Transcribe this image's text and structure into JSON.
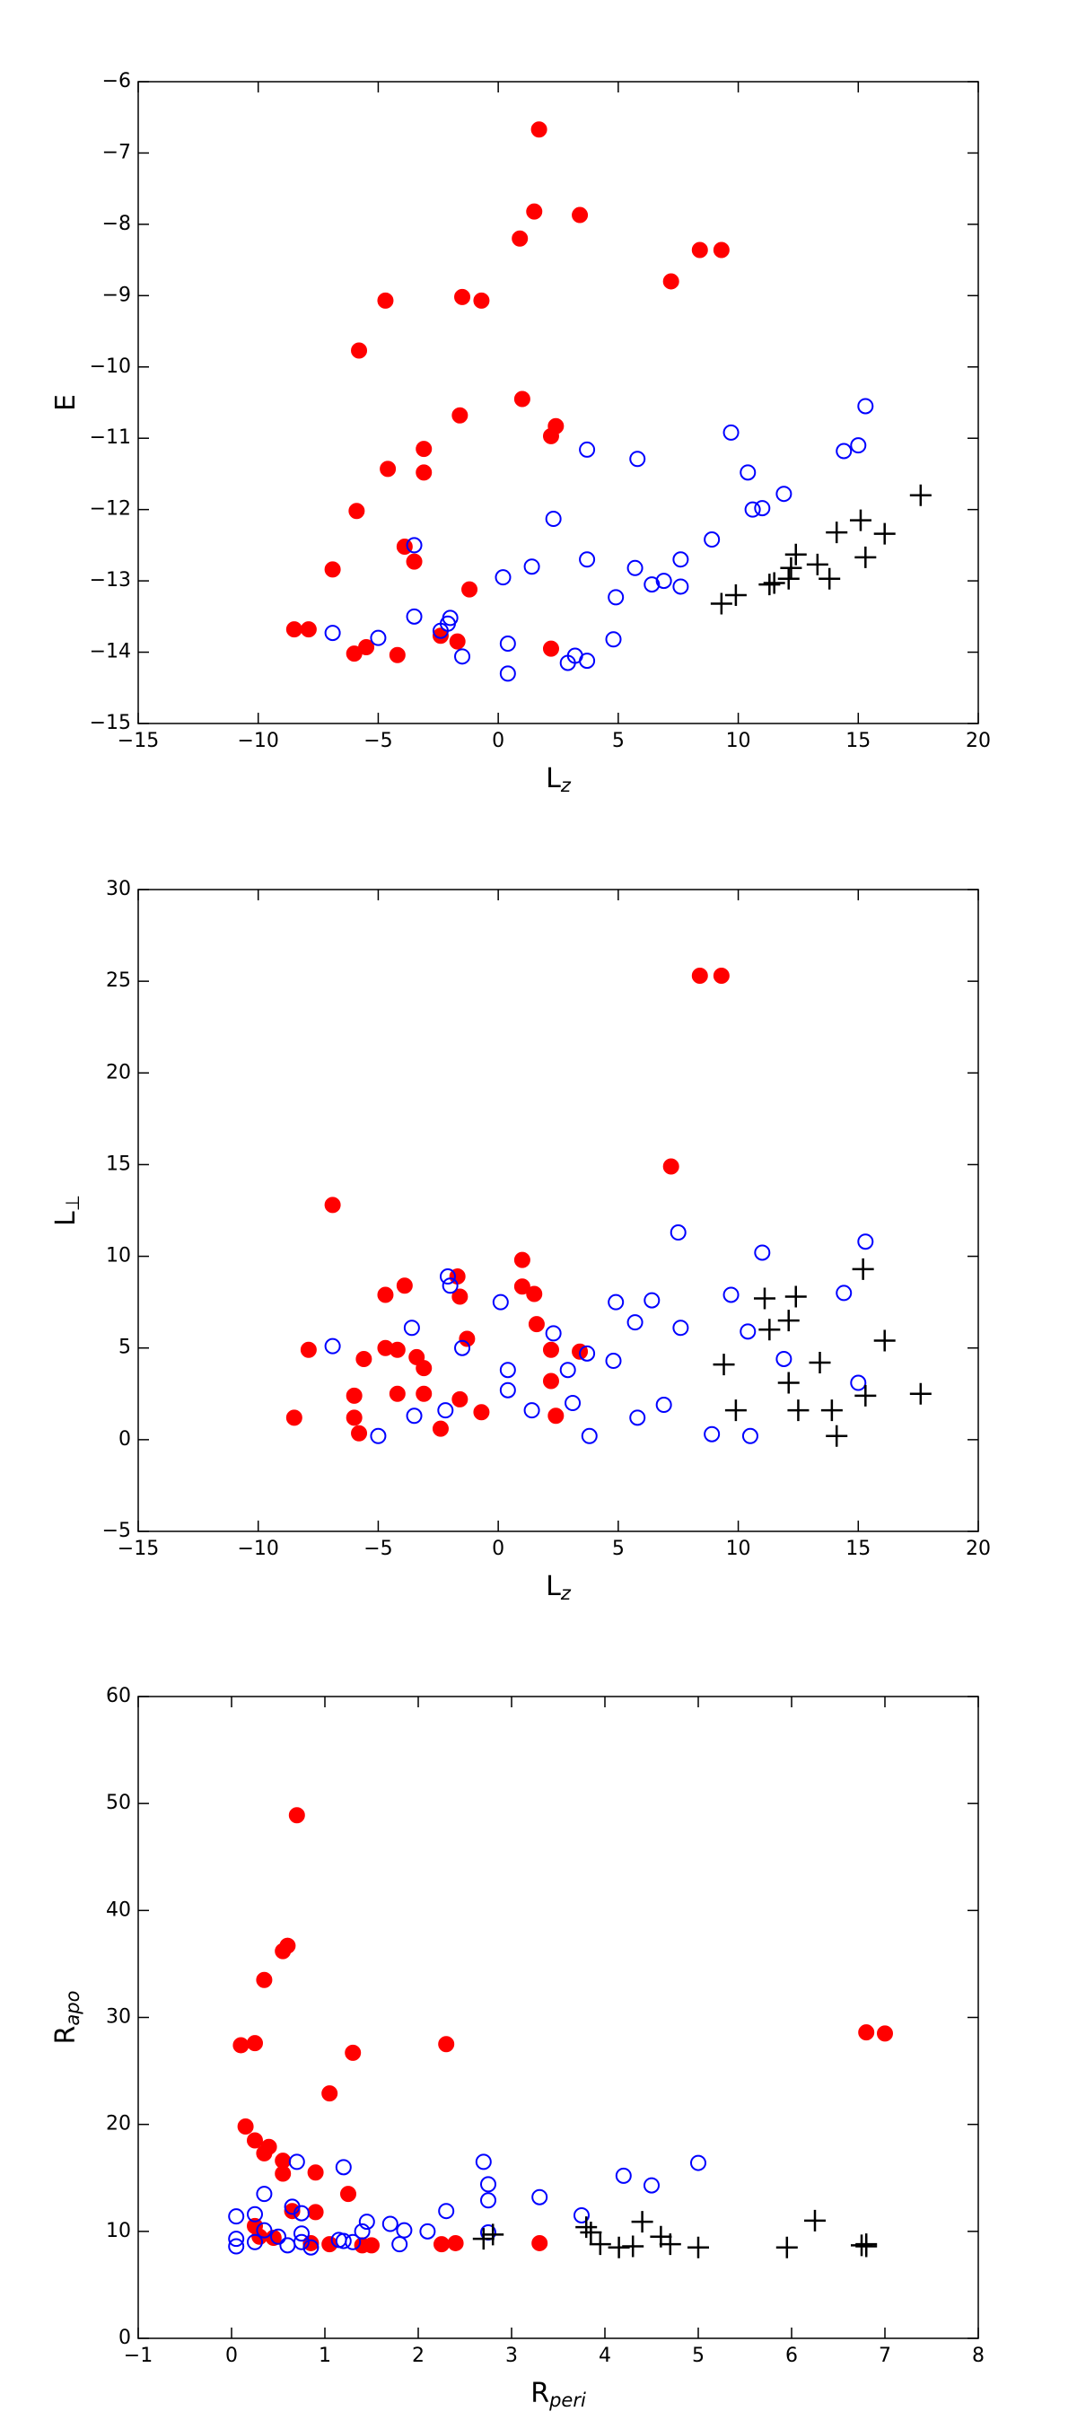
{
  "chart_data": [
    {
      "type": "scatter",
      "xlabel": {
        "text": "L",
        "subscript": "z"
      },
      "ylabel": {
        "text": "E"
      },
      "xlim": [
        -15,
        20
      ],
      "ylim": [
        -15,
        -6
      ],
      "xticks": [
        {
          "value": -15,
          "label": "−15"
        },
        {
          "value": -10,
          "label": "−10"
        },
        {
          "value": -5,
          "label": "−5"
        },
        0,
        5,
        10,
        15,
        20
      ],
      "yticks": [
        {
          "value": -15,
          "label": "−15"
        },
        {
          "value": -14,
          "label": "−14"
        },
        {
          "value": -13,
          "label": "−13"
        },
        {
          "value": -12,
          "label": "−12"
        },
        {
          "value": -11,
          "label": "−11"
        },
        {
          "value": -10,
          "label": "−10"
        },
        {
          "value": -9,
          "label": "−9"
        },
        {
          "value": -8,
          "label": "−8"
        },
        {
          "value": -7,
          "label": "−7"
        },
        {
          "value": -6,
          "label": "−6"
        }
      ],
      "series": [
        {
          "color": "#ff0000",
          "marker": "filled-circle",
          "x": [
            1.7,
            1.5,
            3.4,
            0.9,
            8.4,
            9.3,
            7.2,
            -4.7,
            -1.5,
            -0.7,
            -5.8,
            1.0,
            -1.6,
            2.4,
            2.2,
            -3.1,
            -4.6,
            -3.1,
            -5.9,
            -3.9,
            -3.5,
            -6.9,
            -1.2,
            -8.5,
            -7.9,
            -2.4,
            -1.7,
            -5.5,
            -6.0,
            -4.2,
            2.2
          ],
          "y": [
            -6.67,
            -7.82,
            -7.87,
            -8.2,
            -8.36,
            -8.36,
            -8.8,
            -9.07,
            -9.02,
            -9.07,
            -9.77,
            -10.45,
            -10.68,
            -10.83,
            -10.97,
            -11.15,
            -11.43,
            -11.48,
            -12.02,
            -12.52,
            -12.73,
            -12.84,
            -13.12,
            -13.68,
            -13.68,
            -13.77,
            -13.85,
            -13.93,
            -14.02,
            -14.04,
            -13.95
          ]
        },
        {
          "color": "#0000ff",
          "marker": "open-circle",
          "x": [
            9.7,
            15.3,
            15.0,
            14.4,
            3.7,
            5.8,
            10.4,
            11.9,
            10.6,
            11.0,
            2.3,
            -3.5,
            8.9,
            3.7,
            1.4,
            5.7,
            7.6,
            0.2,
            6.4,
            6.9,
            7.6,
            4.9,
            -3.5,
            -2.0,
            -2.1,
            -2.4,
            -5.0,
            -6.9,
            4.8,
            0.4,
            -1.5,
            3.2,
            3.7,
            2.9,
            0.4
          ],
          "y": [
            -10.92,
            -10.55,
            -11.1,
            -11.18,
            -11.16,
            -11.29,
            -11.48,
            -11.78,
            -12.0,
            -11.98,
            -12.13,
            -12.5,
            -12.42,
            -12.7,
            -12.8,
            -12.82,
            -12.7,
            -12.95,
            -13.05,
            -13.0,
            -13.08,
            -13.23,
            -13.5,
            -13.52,
            -13.6,
            -13.7,
            -13.8,
            -13.73,
            -13.82,
            -13.88,
            -14.06,
            -14.05,
            -14.12,
            -14.15,
            -14.3
          ]
        },
        {
          "color": "#000000",
          "marker": "plus",
          "x": [
            17.6,
            15.1,
            16.1,
            14.1,
            12.4,
            12.2,
            13.3,
            15.3,
            12.1,
            13.8,
            11.3,
            11.5,
            9.9,
            9.3
          ],
          "y": [
            -11.8,
            -12.15,
            -12.34,
            -12.32,
            -12.63,
            -12.82,
            -12.77,
            -12.67,
            -12.97,
            -12.97,
            -13.05,
            -13.03,
            -13.2,
            -13.32
          ]
        }
      ]
    },
    {
      "type": "scatter",
      "xlabel": {
        "text": "L",
        "subscript": "z"
      },
      "ylabel": {
        "text": "L",
        "subscript": "⊥"
      },
      "xlim": [
        -15,
        20
      ],
      "ylim": [
        -5,
        30
      ],
      "xticks": [
        {
          "value": -15,
          "label": "−15"
        },
        {
          "value": -10,
          "label": "−10"
        },
        {
          "value": -5,
          "label": "−5"
        },
        0,
        5,
        10,
        15,
        20
      ],
      "yticks": [
        {
          "value": -5,
          "label": "−5"
        },
        0,
        5,
        10,
        15,
        20,
        25,
        30
      ],
      "series": [
        {
          "color": "#ff0000",
          "marker": "filled-circle",
          "x": [
            8.4,
            9.3,
            7.2,
            -6.9,
            1.0,
            -1.7,
            1.0,
            -3.9,
            -4.7,
            1.5,
            -1.6,
            1.6,
            -1.3,
            -7.9,
            -4.7,
            -4.2,
            2.2,
            3.4,
            -5.6,
            -3.4,
            -3.1,
            2.2,
            -6.0,
            -4.2,
            -3.1,
            -1.6,
            -8.5,
            -6.0,
            -0.7,
            2.4,
            -2.4,
            -5.8
          ],
          "y": [
            25.3,
            25.3,
            14.9,
            12.8,
            9.8,
            8.9,
            8.35,
            8.4,
            7.9,
            7.95,
            7.8,
            6.3,
            5.5,
            4.9,
            5.0,
            4.9,
            4.9,
            4.8,
            4.4,
            4.5,
            3.9,
            3.2,
            2.4,
            2.5,
            2.5,
            2.2,
            1.2,
            1.2,
            1.5,
            1.3,
            0.6,
            0.35
          ]
        },
        {
          "color": "#0000ff",
          "marker": "open-circle",
          "x": [
            7.5,
            15.3,
            11.0,
            -2.1,
            -2.0,
            9.7,
            14.4,
            0.1,
            4.9,
            6.4,
            -3.6,
            5.7,
            7.6,
            10.4,
            2.3,
            -1.5,
            -6.9,
            3.7,
            11.9,
            4.8,
            0.4,
            2.9,
            15.0,
            0.4,
            3.1,
            6.9,
            -2.2,
            1.4,
            -3.5,
            5.8,
            8.9,
            10.5,
            3.8,
            -5.0
          ],
          "y": [
            11.3,
            10.8,
            10.2,
            8.9,
            8.4,
            7.9,
            8.0,
            7.5,
            7.5,
            7.6,
            6.1,
            6.4,
            6.1,
            5.9,
            5.8,
            5.0,
            5.1,
            4.7,
            4.4,
            4.3,
            3.8,
            3.8,
            3.1,
            2.7,
            2.0,
            1.9,
            1.6,
            1.6,
            1.3,
            1.2,
            0.3,
            0.2,
            0.2,
            0.2
          ]
        },
        {
          "color": "#000000",
          "marker": "plus",
          "x": [
            15.2,
            11.1,
            12.4,
            12.1,
            11.3,
            16.1,
            9.4,
            13.4,
            12.1,
            15.3,
            17.6,
            9.9,
            12.5,
            13.9,
            14.1
          ],
          "y": [
            9.3,
            7.7,
            7.8,
            6.5,
            6.0,
            5.4,
            4.1,
            4.2,
            3.1,
            2.4,
            2.5,
            1.6,
            1.6,
            1.6,
            0.2
          ]
        }
      ]
    },
    {
      "type": "scatter",
      "xlabel": {
        "text": "R",
        "subscript": "peri"
      },
      "ylabel": {
        "text": "R",
        "subscript": "apo"
      },
      "xlim": [
        -1,
        8
      ],
      "ylim": [
        0,
        60
      ],
      "xticks": [
        {
          "value": -1,
          "label": "−1"
        },
        0,
        1,
        2,
        3,
        4,
        5,
        6,
        7,
        8
      ],
      "yticks": [
        0,
        10,
        20,
        30,
        40,
        50,
        60
      ],
      "series": [
        {
          "color": "#ff0000",
          "marker": "filled-circle",
          "x": [
            0.7,
            0.6,
            0.55,
            0.35,
            0.1,
            0.25,
            1.3,
            2.3,
            6.8,
            7.0,
            1.05,
            0.15,
            0.25,
            0.4,
            0.35,
            0.55,
            0.9,
            0.55,
            1.25,
            0.65,
            0.9,
            0.25,
            0.3,
            0.45,
            1.05,
            1.4,
            1.5,
            2.25,
            2.4,
            3.3,
            0.85
          ],
          "y": [
            48.9,
            36.7,
            36.2,
            33.5,
            27.4,
            27.6,
            26.7,
            27.5,
            28.6,
            28.5,
            22.9,
            19.8,
            18.5,
            17.9,
            17.3,
            16.6,
            15.5,
            15.4,
            13.5,
            11.9,
            11.8,
            10.5,
            9.5,
            9.4,
            8.8,
            8.7,
            8.7,
            8.8,
            8.9,
            8.9,
            8.9
          ]
        },
        {
          "color": "#0000ff",
          "marker": "open-circle",
          "x": [
            0.7,
            1.2,
            2.7,
            5.0,
            4.2,
            4.5,
            2.75,
            0.35,
            3.3,
            2.75,
            0.65,
            0.05,
            0.25,
            0.75,
            2.3,
            3.75,
            1.45,
            1.7,
            1.85,
            2.1,
            0.05,
            0.35,
            0.5,
            0.75,
            1.15,
            1.3,
            1.4,
            2.75,
            0.05,
            0.25,
            0.6,
            0.75,
            1.2,
            1.8,
            0.85
          ],
          "y": [
            16.5,
            16.0,
            16.5,
            16.4,
            15.2,
            14.3,
            14.4,
            13.5,
            13.2,
            12.9,
            12.3,
            11.4,
            11.6,
            11.7,
            11.9,
            11.5,
            10.9,
            10.7,
            10.1,
            10.0,
            9.3,
            10.1,
            9.5,
            9.8,
            9.2,
            9.0,
            10.0,
            9.9,
            8.6,
            9.0,
            8.7,
            9.0,
            9.1,
            8.8,
            8.5
          ]
        },
        {
          "color": "#000000",
          "marker": "plus",
          "x": [
            6.25,
            4.4,
            3.8,
            3.85,
            2.8,
            2.7,
            4.6,
            3.95,
            4.3,
            4.7,
            4.15,
            5.0,
            5.95,
            6.8,
            6.8,
            6.75
          ],
          "y": [
            11.0,
            10.9,
            10.4,
            9.9,
            9.7,
            9.3,
            9.5,
            8.8,
            8.6,
            8.8,
            8.5,
            8.5,
            8.5,
            8.6,
            8.8,
            8.7
          ]
        }
      ]
    }
  ]
}
